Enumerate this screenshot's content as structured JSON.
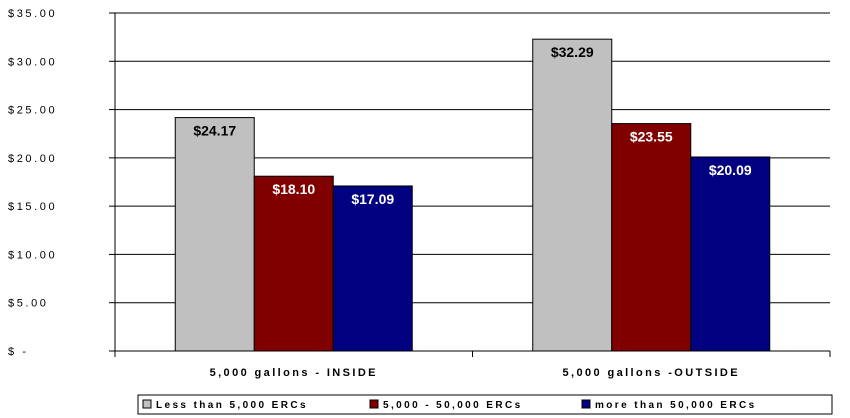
{
  "chart_data": {
    "type": "bar",
    "categories": [
      "5,000 gallons - INSIDE",
      "5,000 gallons -OUTSIDE"
    ],
    "series": [
      {
        "name": "Less than 5,000 ERCs",
        "values": [
          24.17,
          32.29
        ],
        "labels": [
          "$24.17",
          "$32.29"
        ],
        "color": "#c0c0c0",
        "label_color": "#000000"
      },
      {
        "name": "5,000 - 50,000 ERCs",
        "values": [
          18.1,
          23.55
        ],
        "labels": [
          "$18.10",
          "$23.55"
        ],
        "color": "#800000",
        "label_color": "#ffffff"
      },
      {
        "name": "more than 50,000 ERCs",
        "values": [
          17.09,
          20.09
        ],
        "labels": [
          "$17.09",
          "$20.09"
        ],
        "color": "#000080",
        "label_color": "#ffffff"
      }
    ],
    "y_ticks": [
      {
        "value": 35,
        "label": "$35.00"
      },
      {
        "value": 30,
        "label": "$30.00"
      },
      {
        "value": 25,
        "label": "$25.00"
      },
      {
        "value": 20,
        "label": "$20.00"
      },
      {
        "value": 15,
        "label": "$15.00"
      },
      {
        "value": 10,
        "label": "$10.00"
      },
      {
        "value": 5,
        "label": "$5.00"
      },
      {
        "value": 0,
        "label": "$ -"
      }
    ],
    "ylim": [
      0,
      35
    ],
    "grid": true,
    "legend_position": "bottom",
    "title": "",
    "xlabel": "",
    "ylabel": ""
  }
}
